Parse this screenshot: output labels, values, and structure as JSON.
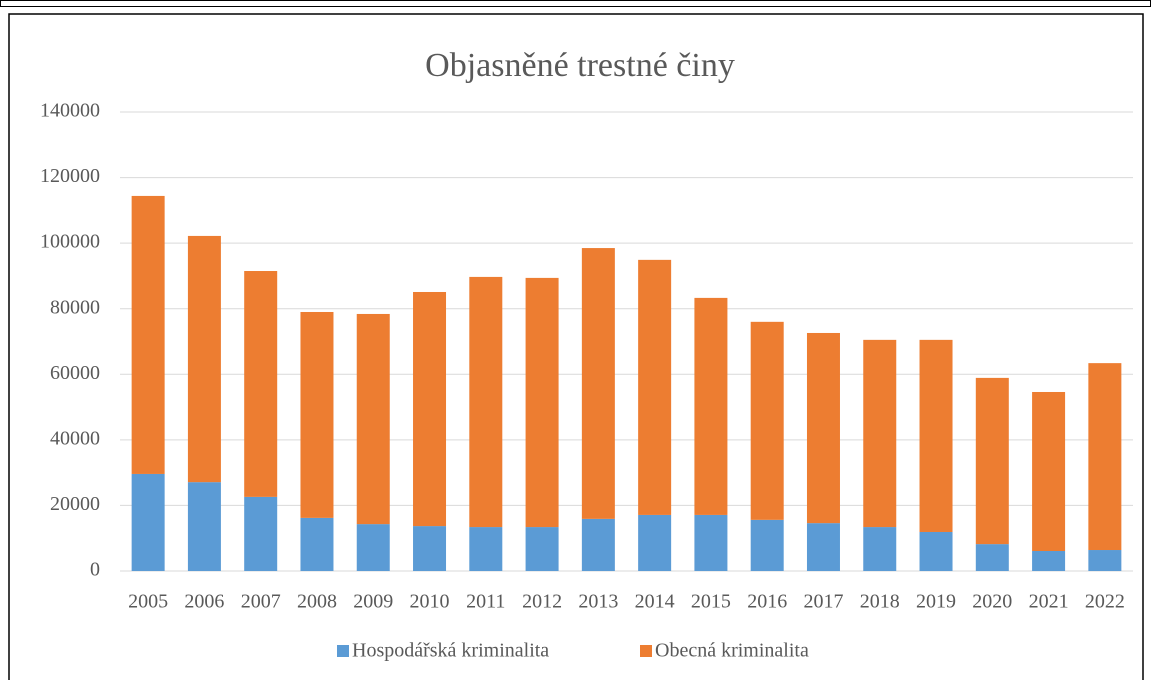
{
  "chart_data": {
    "type": "stacked_bar",
    "title": "Objasněné trestné činy",
    "categories": [
      "2005",
      "2006",
      "2007",
      "2008",
      "2009",
      "2010",
      "2011",
      "2012",
      "2013",
      "2014",
      "2015",
      "2016",
      "2017",
      "2018",
      "2019",
      "2020",
      "2021",
      "2022"
    ],
    "series": [
      {
        "name": "Hospodářská kriminalita",
        "color": "#5b9bd5",
        "values": [
          29600,
          27100,
          22600,
          16200,
          14300,
          13700,
          13400,
          13400,
          15900,
          17100,
          17100,
          15600,
          14600,
          13400,
          11900,
          8200,
          6100,
          6400
        ]
      },
      {
        "name": "Obecná kriminalita",
        "color": "#ed7d31",
        "values": [
          84800,
          75100,
          68900,
          62800,
          64100,
          71400,
          76300,
          76000,
          82600,
          77800,
          66200,
          60400,
          58000,
          57100,
          58600,
          50700,
          48500,
          57000
        ]
      }
    ],
    "ylim": [
      0,
      140000
    ],
    "yticks": [
      0,
      20000,
      40000,
      60000,
      80000,
      100000,
      120000,
      140000
    ],
    "grid": true,
    "legend": "bottom"
  }
}
